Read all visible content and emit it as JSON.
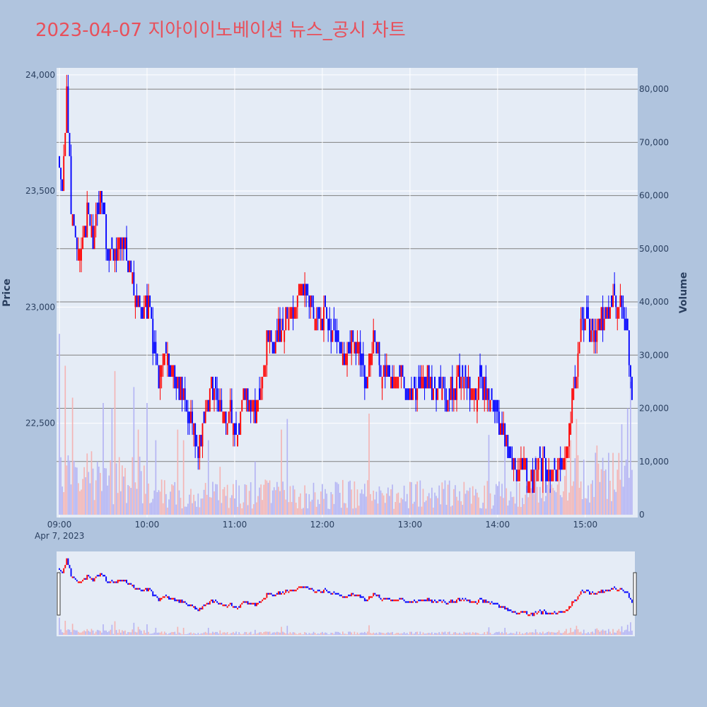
{
  "chart_data": {
    "type": "candlestick",
    "title": "2023-04-07 지아이이노베이션 뉴스_공시 차트",
    "date_label": "Apr 7, 2023",
    "ylabel": "Price",
    "y2label": "Volume",
    "x_ticks": [
      "09:00",
      "10:00",
      "11:00",
      "12:00",
      "13:00",
      "14:00",
      "15:00"
    ],
    "price_ticks": [
      {
        "value": 22500,
        "label": "22,500"
      },
      {
        "value": 23000,
        "label": "23,000"
      },
      {
        "value": 23500,
        "label": "23,500"
      },
      {
        "value": 24000,
        "label": "24,000"
      }
    ],
    "volume_ticks": [
      {
        "value": 0,
        "label": "0"
      },
      {
        "value": 10000,
        "label": "10,000"
      },
      {
        "value": 20000,
        "label": "20,000"
      },
      {
        "value": 30000,
        "label": "30,000"
      },
      {
        "value": 40000,
        "label": "40,000"
      },
      {
        "value": 50000,
        "label": "50,000"
      },
      {
        "value": 60000,
        "label": "60,000"
      },
      {
        "value": 70000,
        "label": "70,000"
      },
      {
        "value": 80000,
        "label": "80,000"
      }
    ],
    "price_range": [
      22100,
      24030
    ],
    "volume_range": [
      0,
      84000
    ],
    "time_range_minutes": [
      540,
      933
    ],
    "colors": {
      "increasing": "#ff0000",
      "decreasing": "#0000ff",
      "volume_up": "#f4b4b4",
      "volume_down": "#b4b4f4",
      "title": "#e8505b",
      "plot_bg": "#e5ecf6",
      "page_bg": "#b0c4de"
    },
    "price_anchors": [
      [
        540,
        23600
      ],
      [
        542,
        23500
      ],
      [
        545,
        23900
      ],
      [
        548,
        23450
      ],
      [
        553,
        23250
      ],
      [
        556,
        23300
      ],
      [
        560,
        23450
      ],
      [
        563,
        23250
      ],
      [
        568,
        23450
      ],
      [
        571,
        23400
      ],
      [
        573,
        23200
      ],
      [
        578,
        23250
      ],
      [
        583,
        23300
      ],
      [
        587,
        23200
      ],
      [
        592,
        23050
      ],
      [
        596,
        22950
      ],
      [
        601,
        23000
      ],
      [
        605,
        22800
      ],
      [
        608,
        22700
      ],
      [
        613,
        22800
      ],
      [
        618,
        22700
      ],
      [
        622,
        22650
      ],
      [
        627,
        22550
      ],
      [
        631,
        22500
      ],
      [
        634,
        22400
      ],
      [
        638,
        22450
      ],
      [
        643,
        22650
      ],
      [
        648,
        22600
      ],
      [
        652,
        22550
      ],
      [
        656,
        22550
      ],
      [
        660,
        22500
      ],
      [
        663,
        22400
      ],
      [
        666,
        22650
      ],
      [
        670,
        22600
      ],
      [
        674,
        22550
      ],
      [
        678,
        22650
      ],
      [
        680,
        22750
      ],
      [
        683,
        22900
      ],
      [
        686,
        22800
      ],
      [
        690,
        22900
      ],
      [
        695,
        22950
      ],
      [
        700,
        23000
      ],
      [
        705,
        23050
      ],
      [
        708,
        23100
      ],
      [
        713,
        23000
      ],
      [
        718,
        22950
      ],
      [
        723,
        22950
      ],
      [
        728,
        22900
      ],
      [
        731,
        22850
      ],
      [
        735,
        22750
      ],
      [
        740,
        22850
      ],
      [
        745,
        22800
      ],
      [
        750,
        22700
      ],
      [
        755,
        22850
      ],
      [
        760,
        22750
      ],
      [
        764,
        22700
      ],
      [
        768,
        22700
      ],
      [
        773,
        22700
      ],
      [
        778,
        22600
      ],
      [
        785,
        22650
      ],
      [
        790,
        22700
      ],
      [
        795,
        22650
      ],
      [
        800,
        22650
      ],
      [
        805,
        22600
      ],
      [
        810,
        22650
      ],
      [
        815,
        22700
      ],
      [
        820,
        22650
      ],
      [
        825,
        22650
      ],
      [
        830,
        22650
      ],
      [
        835,
        22650
      ],
      [
        840,
        22500
      ],
      [
        845,
        22450
      ],
      [
        848,
        22350
      ],
      [
        853,
        22300
      ],
      [
        858,
        22350
      ],
      [
        863,
        22250
      ],
      [
        868,
        22300
      ],
      [
        873,
        22300
      ],
      [
        876,
        22250
      ],
      [
        880,
        22300
      ],
      [
        886,
        22350
      ],
      [
        890,
        22550
      ],
      [
        894,
        22750
      ],
      [
        898,
        22950
      ],
      [
        902,
        22900
      ],
      [
        906,
        22850
      ],
      [
        910,
        22950
      ],
      [
        914,
        22950
      ],
      [
        918,
        23000
      ],
      [
        922,
        23050
      ],
      [
        926,
        23000
      ],
      [
        929,
        22900
      ],
      [
        932,
        22600
      ]
    ],
    "volume_spikes": [
      [
        540,
        34000
      ],
      [
        544,
        28000
      ],
      [
        549,
        22000
      ],
      [
        570,
        21000
      ],
      [
        576,
        20000
      ],
      [
        578,
        27000
      ],
      [
        591,
        24000
      ],
      [
        594,
        16000
      ],
      [
        600,
        21000
      ],
      [
        606,
        14000
      ],
      [
        621,
        16000
      ],
      [
        625,
        14000
      ],
      [
        642,
        14000
      ],
      [
        650,
        9000
      ],
      [
        674,
        10000
      ],
      [
        692,
        16000
      ],
      [
        696,
        18000
      ],
      [
        752,
        19000
      ],
      [
        834,
        15000
      ],
      [
        845,
        14000
      ],
      [
        866,
        11000
      ],
      [
        890,
        14000
      ],
      [
        894,
        18000
      ],
      [
        908,
        13000
      ],
      [
        925,
        17000
      ],
      [
        929,
        20000
      ],
      [
        931,
        25000
      ]
    ],
    "volume_base": 3500
  }
}
